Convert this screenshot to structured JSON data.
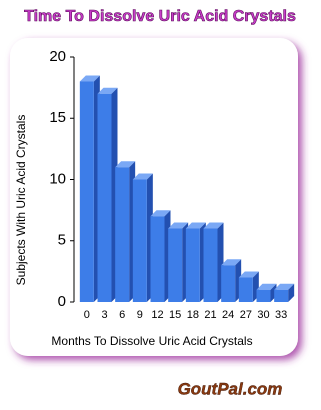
{
  "chart_data": {
    "type": "bar",
    "title": "Time To Dissolve Uric Acid Crystals",
    "x_label": "Months To Dissolve Uric Acid Crystals",
    "y_label": "Subjects With Uric Acid Crystals",
    "categories": [
      "0",
      "3",
      "6",
      "9",
      "12",
      "15",
      "18",
      "21",
      "24",
      "27",
      "30",
      "33"
    ],
    "values": [
      18,
      17,
      11,
      10,
      7,
      6,
      6,
      6,
      3,
      2,
      1,
      1
    ],
    "color": "#3d7de8",
    "ylim": [
      0,
      20
    ],
    "yticks": [
      0,
      5,
      10,
      15,
      20
    ],
    "grid": false
  },
  "footer": "GoutPal.com"
}
